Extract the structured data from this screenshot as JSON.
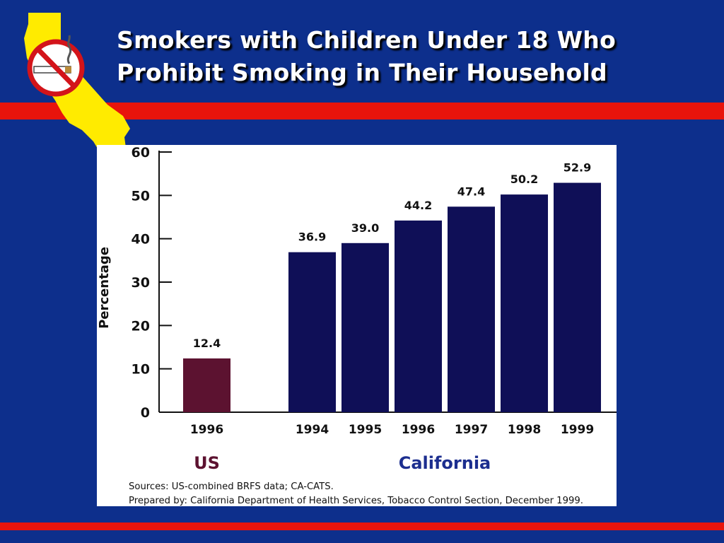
{
  "colors": {
    "background": "#0d2f8c",
    "stripe": "#e8140c",
    "us_bar": "#5c1230",
    "ca_bar": "#0f0f57",
    "us_label": "#5c1230",
    "ca_label": "#1c2e8f",
    "logo_fill": "#ffeb00"
  },
  "logo": {
    "icon": "no-smoking-california-icon"
  },
  "slide": {
    "title_line1": "Smokers with Children Under 18 Who",
    "title_line2": "Prohibit Smoking in Their Household"
  },
  "chart_data": {
    "type": "bar",
    "ylabel": "Percentage",
    "ylim": [
      0,
      60
    ],
    "yticks": [
      0,
      10,
      20,
      30,
      40,
      50,
      60
    ],
    "grid": false,
    "groups": [
      {
        "name": "US",
        "categories": [
          "1996"
        ],
        "values": [
          12.4
        ],
        "value_labels": [
          "12.4"
        ]
      },
      {
        "name": "California",
        "categories": [
          "1994",
          "1995",
          "1996",
          "1997",
          "1998",
          "1999"
        ],
        "values": [
          36.9,
          39.0,
          44.2,
          47.4,
          50.2,
          52.9
        ],
        "value_labels": [
          "36.9",
          "39.0",
          "44.2",
          "47.4",
          "50.2",
          "52.9"
        ]
      }
    ],
    "sources_line": "Sources:  US-combined BRFS data; CA-CATS.",
    "prepared_line": "Prepared by:  California Department of Health Services, Tobacco Control Section, December 1999."
  }
}
